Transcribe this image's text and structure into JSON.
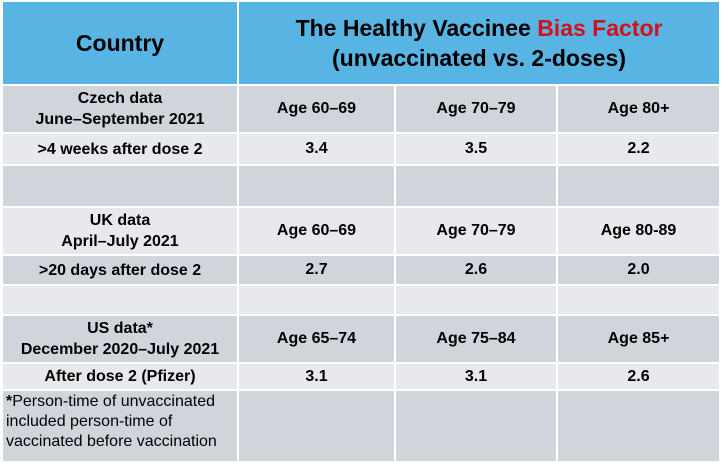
{
  "header": {
    "country": "Country",
    "title_prefix": "The Healthy Vaccinee ",
    "title_highlight": "Bias Factor",
    "title_line2": "(unvaccinated vs. 2-doses)"
  },
  "sections": [
    {
      "label_line1": "Czech data",
      "label_line2": "June–September 2021",
      "ages": [
        "Age 60–69",
        "Age 70–79",
        "Age 80+"
      ],
      "metric_label": ">4 weeks after dose 2",
      "values": [
        "3.4",
        "3.5",
        "2.2"
      ]
    },
    {
      "label_line1": "UK data",
      "label_line2": "April–July 2021",
      "ages": [
        "Age 60–69",
        "Age 70–79",
        "Age 80-89"
      ],
      "metric_label": ">20 days after dose 2",
      "values": [
        "2.7",
        "2.6",
        "2.0"
      ]
    },
    {
      "label_line1": "US data*",
      "label_line2": "December 2020–July 2021",
      "ages": [
        "Age 65–74",
        "Age 75–84",
        "Age 85+"
      ],
      "metric_label": "After dose 2 (Pfizer)",
      "values": [
        "3.1",
        "3.1",
        "2.6"
      ]
    }
  ],
  "footnote": {
    "mark": "*",
    "line1": "Person-time of unvaccinated",
    "line2": "included person-time of",
    "line3": "vaccinated before vaccination"
  },
  "colors": {
    "header_bg": "#58b4e2",
    "row_dark": "#d0d5dc",
    "row_light": "#e7e9ec",
    "value_red": "#d0121c"
  }
}
